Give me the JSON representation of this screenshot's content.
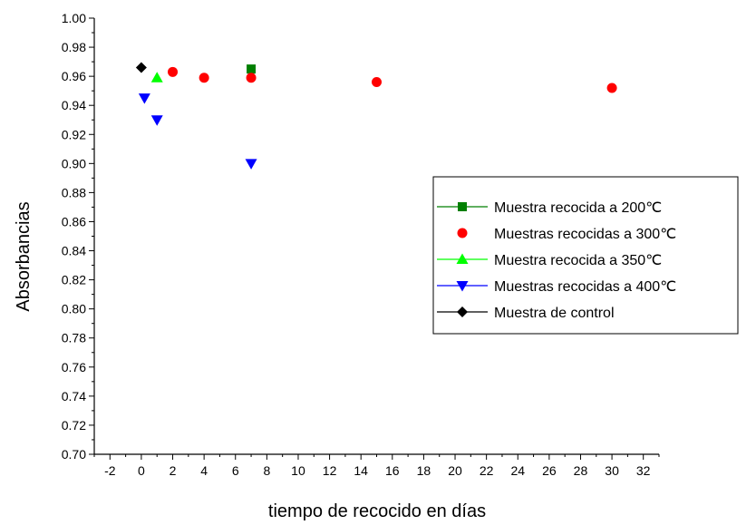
{
  "chart_data": {
    "type": "scatter",
    "xlabel": "tiempo de recocido en días",
    "ylabel": "Absorbancias",
    "xlim": [
      -3,
      33
    ],
    "ylim": [
      0.7,
      1.0
    ],
    "xticks": [
      "-2",
      "0",
      "2",
      "4",
      "6",
      "8",
      "10",
      "12",
      "14",
      "16",
      "18",
      "20",
      "22",
      "24",
      "26",
      "28",
      "30",
      "32"
    ],
    "yticks": [
      "0.70",
      "0.72",
      "0.74",
      "0.76",
      "0.78",
      "0.80",
      "0.82",
      "0.84",
      "0.86",
      "0.88",
      "0.90",
      "0.92",
      "0.94",
      "0.96",
      "0.98",
      "1.00"
    ],
    "grid": false,
    "legend_position": "right",
    "series": [
      {
        "name": "Muestra recocida a 200℃",
        "marker": "square",
        "color": "#007F00",
        "points": [
          [
            7,
            0.965
          ]
        ]
      },
      {
        "name": "Muestras recocidas a 300℃",
        "marker": "circle",
        "color": "#FF0000",
        "points": [
          [
            2,
            0.963
          ],
          [
            4,
            0.959
          ],
          [
            7,
            0.959
          ],
          [
            15,
            0.956
          ],
          [
            30,
            0.952
          ]
        ]
      },
      {
        "name": "Muestra recocida a 350℃",
        "marker": "triangle-up",
        "color": "#00FF00",
        "points": [
          [
            1,
            0.959
          ]
        ]
      },
      {
        "name": "Muestras recocidas a 400℃",
        "marker": "triangle-down",
        "color": "#0000FF",
        "points": [
          [
            0.2,
            0.945
          ],
          [
            1,
            0.93
          ],
          [
            7,
            0.9
          ]
        ]
      },
      {
        "name": "Muestra de control",
        "marker": "diamond",
        "color": "#000000",
        "points": [
          [
            0,
            0.966
          ]
        ]
      }
    ]
  }
}
